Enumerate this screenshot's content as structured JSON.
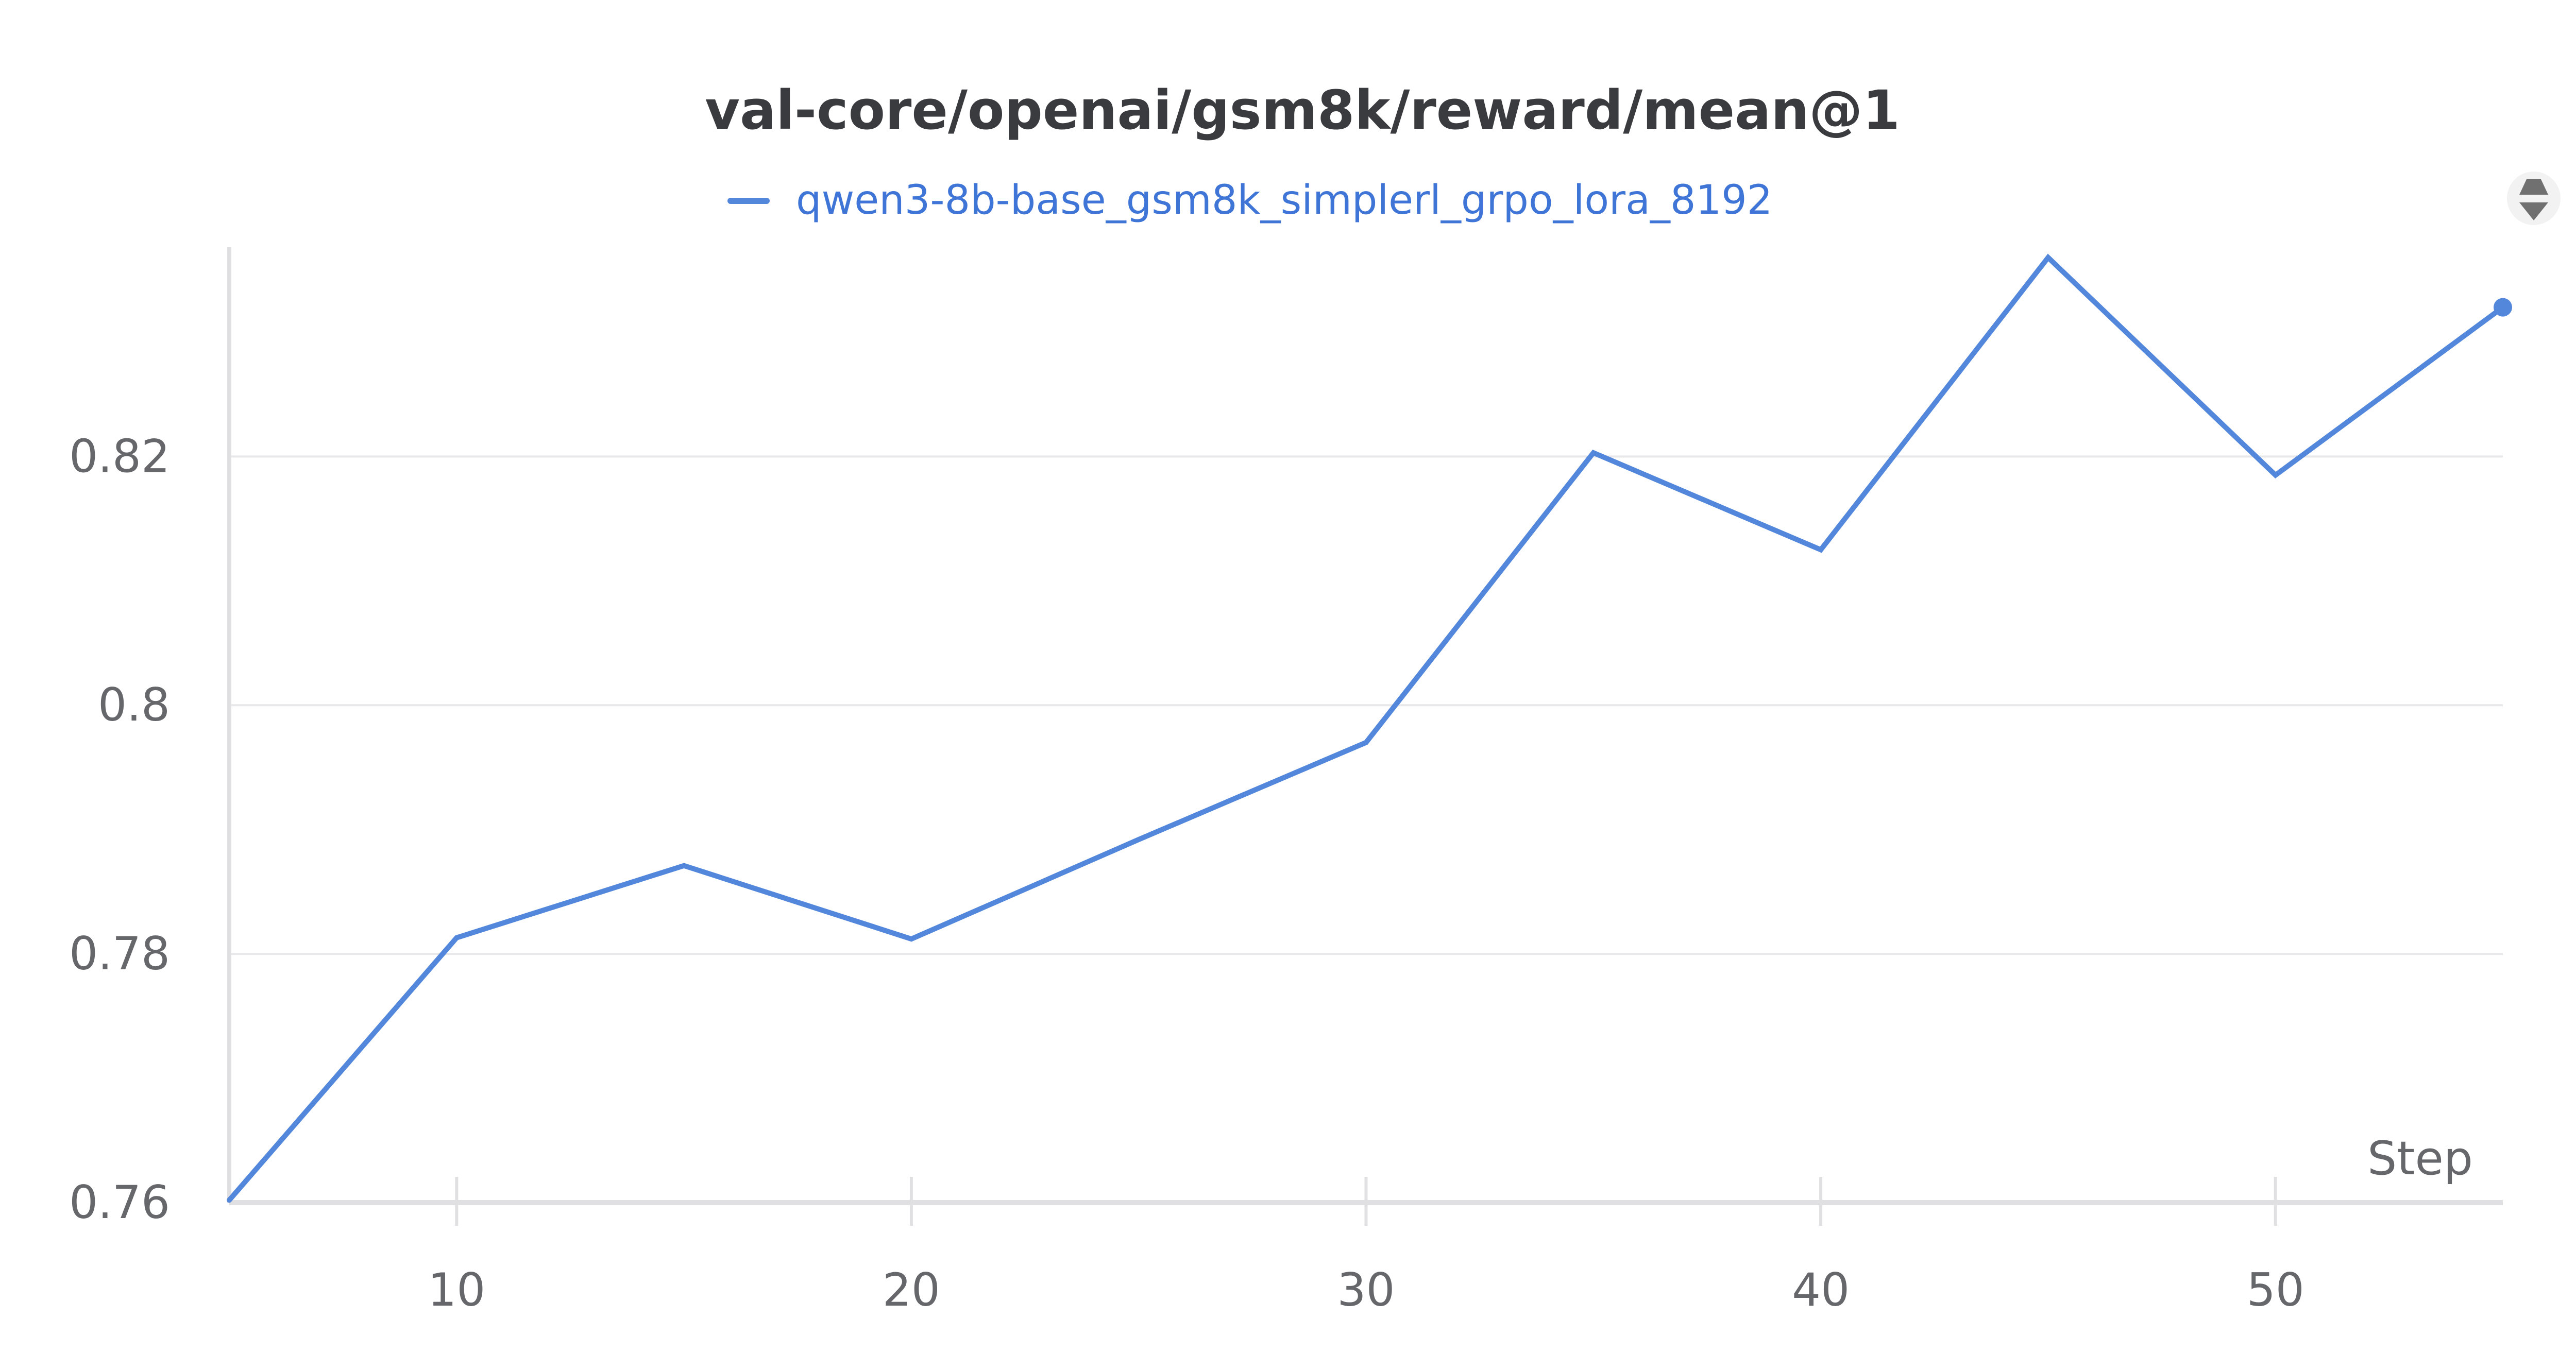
{
  "chart_data": {
    "type": "line",
    "title": "val-core/openai/gsm8k/reward/mean@1",
    "xlabel": "Step",
    "ylabel": "",
    "xlim": [
      5,
      55
    ],
    "ylim": [
      0.76,
      0.836
    ],
    "xticks": [
      10,
      20,
      30,
      40,
      50
    ],
    "yticks": [
      0.76,
      0.78,
      0.8,
      0.82
    ],
    "ytick_labels": [
      "0.76",
      "0.78",
      "0.8",
      "0.82"
    ],
    "grid": true,
    "legend_position": "top",
    "series": [
      {
        "name": "qwen3-8b-base_gsm8k_simplerl_grpo_lora_8192",
        "color": "#5287dc",
        "x": [
          5,
          10,
          15,
          20,
          25,
          30,
          35,
          40,
          45,
          50,
          55
        ],
        "y": [
          0.7602,
          0.7813,
          0.7871,
          0.7812,
          0.7892,
          0.797,
          0.8203,
          0.8125,
          0.836,
          0.8185,
          0.832
        ]
      }
    ]
  },
  "controls": {
    "menu_icon": "sort-toggle-icon"
  }
}
